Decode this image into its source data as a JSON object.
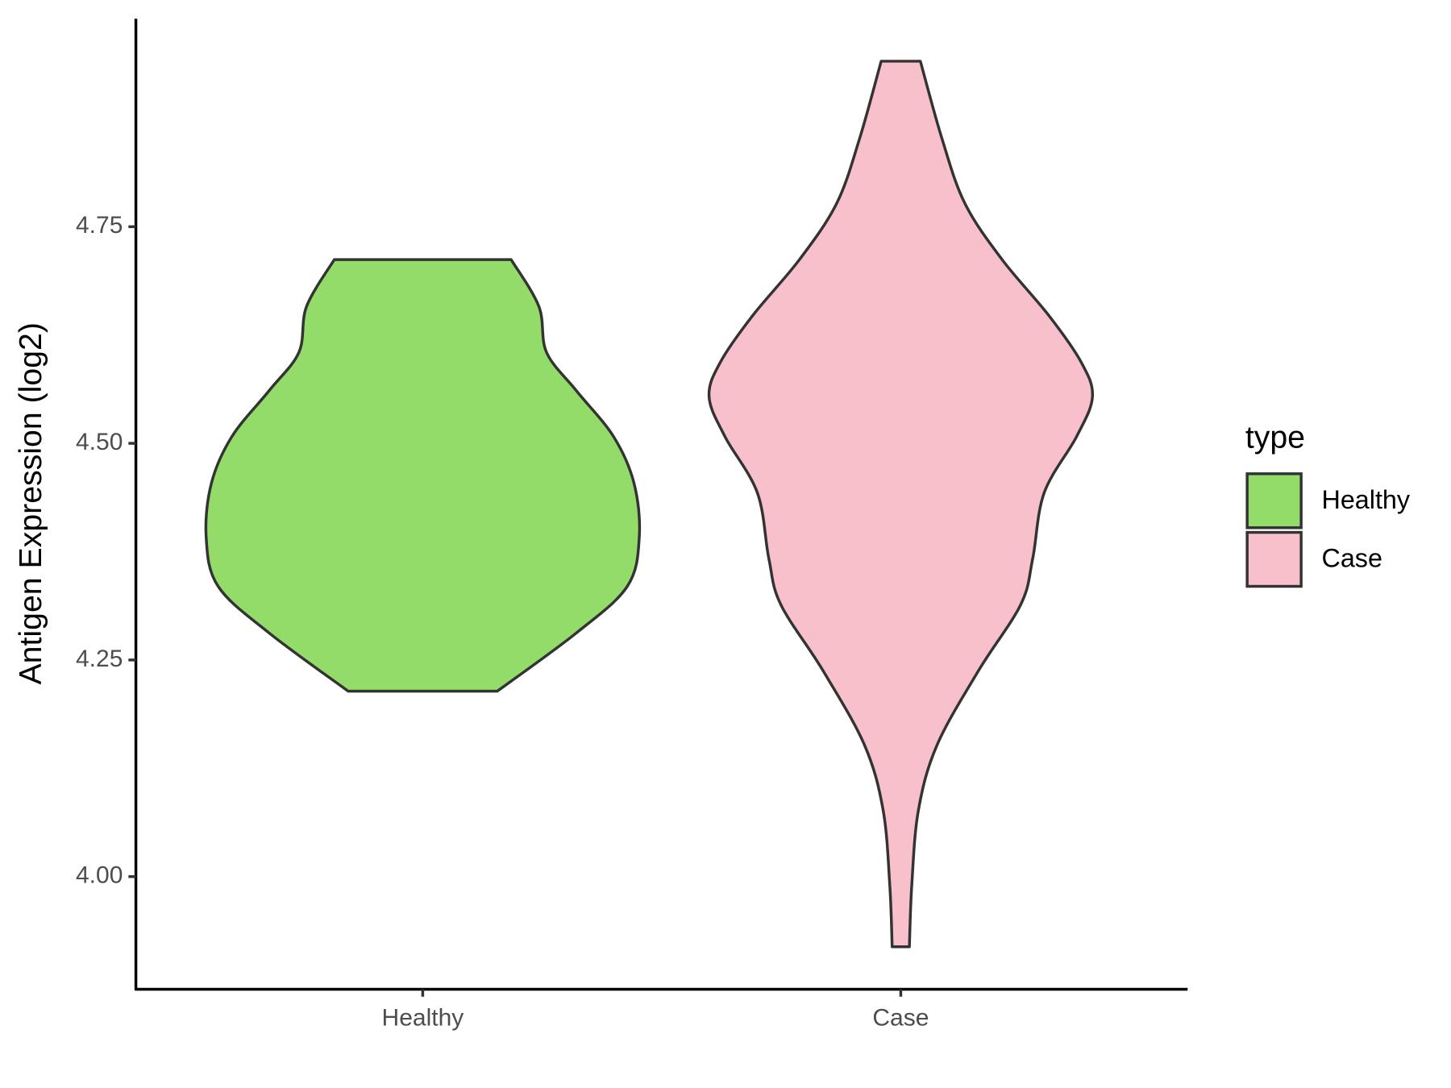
{
  "chart_data": {
    "type": "violin",
    "y_label": "Antigen Expression (log2)",
    "categories": [
      "Healthy",
      "Case"
    ],
    "ylim": [
      3.87,
      4.99
    ],
    "yticks": [
      {
        "value": 4,
        "label": "4.00"
      },
      {
        "value": 4.25,
        "label": "4.25"
      },
      {
        "value": 4.5,
        "label": "4.50"
      },
      {
        "value": 4.75,
        "label": "4.75"
      }
    ],
    "legend_title": "type",
    "legend_position": "right",
    "series": [
      {
        "name": "Healthy",
        "color": "#93dc6a",
        "values": [
          4.712,
          4.658,
          4.605,
          4.561,
          4.508,
          4.454,
          4.392,
          4.335,
          4.281,
          4.214
        ],
        "widths": [
          0.185,
          0.243,
          0.259,
          0.321,
          0.399,
          0.442,
          0.453,
          0.428,
          0.321,
          0.156
        ]
      },
      {
        "name": "Case",
        "color": "#f8c0cb",
        "values": [
          4.941,
          4.852,
          4.777,
          4.712,
          4.648,
          4.594,
          4.554,
          4.508,
          4.443,
          4.367,
          4.314,
          4.238,
          4.152,
          4.077,
          3.99,
          3.919
        ],
        "widths": [
          0.041,
          0.086,
          0.134,
          0.212,
          0.309,
          0.377,
          0.401,
          0.368,
          0.3,
          0.276,
          0.251,
          0.163,
          0.076,
          0.037,
          0.023,
          0.018
        ]
      }
    ]
  }
}
